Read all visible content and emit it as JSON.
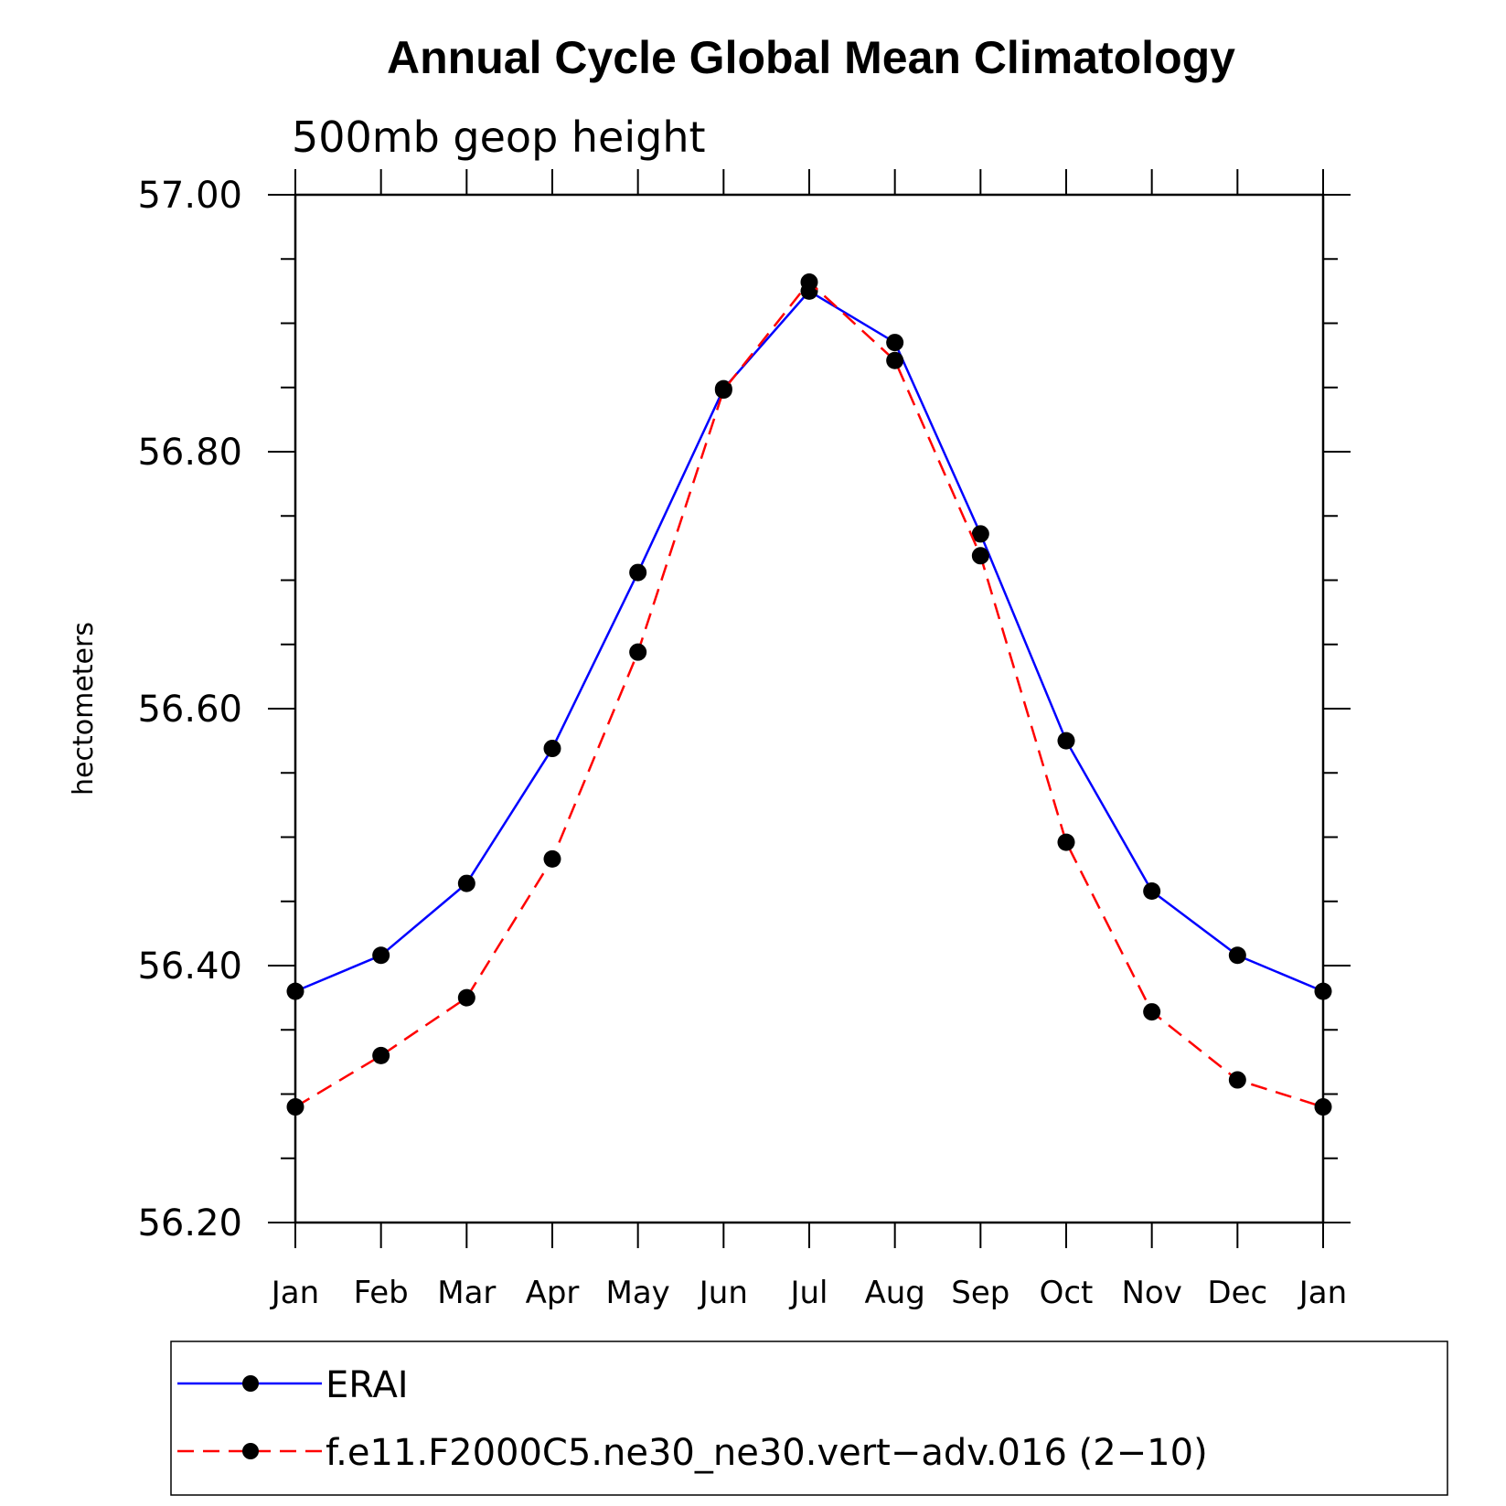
{
  "chart_data": {
    "type": "line",
    "title": "Annual Cycle Global Mean Climatology",
    "subtitle": "500mb geop height",
    "ylabel": "hectometers",
    "xlabel": "",
    "categories": [
      "Jan",
      "Feb",
      "Mar",
      "Apr",
      "May",
      "Jun",
      "Jul",
      "Aug",
      "Sep",
      "Oct",
      "Nov",
      "Dec",
      "Jan"
    ],
    "ylim": [
      56.2,
      57.0
    ],
    "yticks": [
      "56.20",
      "56.40",
      "56.60",
      "56.80",
      "57.00"
    ],
    "series": [
      {
        "name": "ERAI",
        "color": "#0000ff",
        "line": "solid",
        "marker": "filled-circle",
        "values": [
          56.38,
          56.408,
          56.464,
          56.569,
          56.706,
          56.849,
          56.925,
          56.885,
          56.736,
          56.575,
          56.458,
          56.408,
          56.38
        ]
      },
      {
        "name": "f.e11.F2000C5.ne30_ne30.vert−adv.016 (2−10)",
        "color": "#ff0000",
        "line": "dashed",
        "marker": "filled-circle",
        "values": [
          56.29,
          56.33,
          56.375,
          56.483,
          56.644,
          56.848,
          56.932,
          56.871,
          56.719,
          56.496,
          56.364,
          56.311,
          56.29
        ]
      }
    ],
    "grid": false,
    "legend_position": "bottom"
  }
}
